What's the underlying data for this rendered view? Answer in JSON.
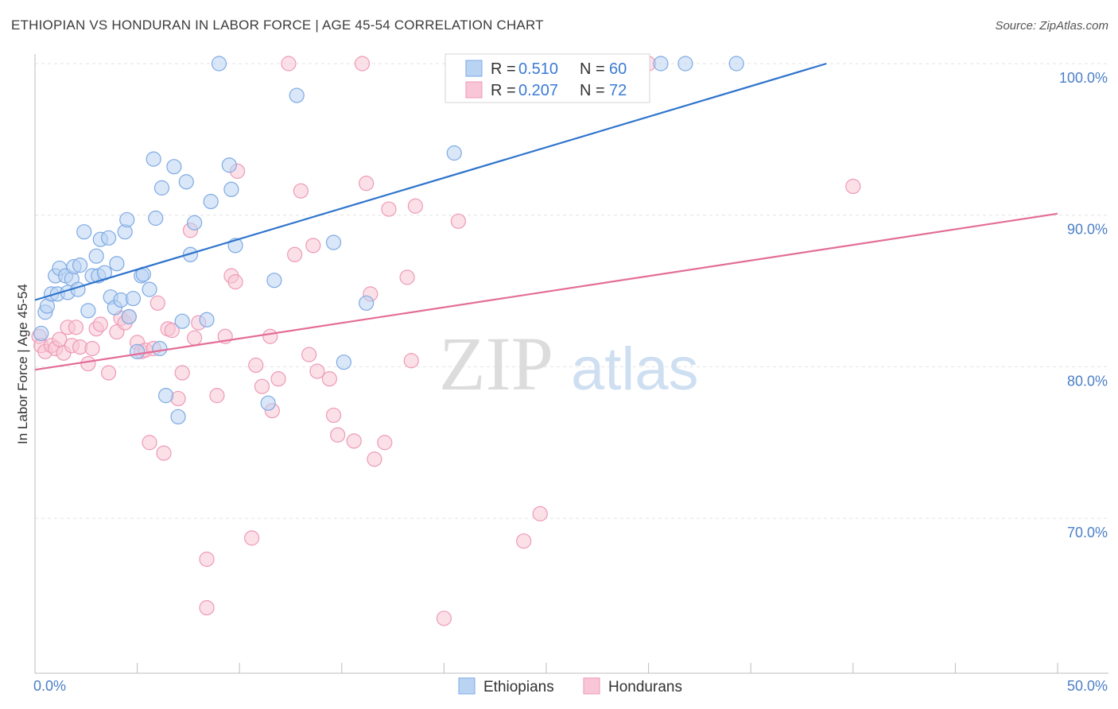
{
  "title": "ETHIOPIAN VS HONDURAN IN LABOR FORCE | AGE 45-54 CORRELATION CHART",
  "source": "Source: ZipAtlas.com",
  "watermark": {
    "zip": "ZIP",
    "atlas": "atlas"
  },
  "colors": {
    "ethiopians_fill": "#b9d3f3",
    "ethiopians_stroke": "#7eaae4",
    "ethiopians_line": "#2f74cc",
    "hondurans_fill": "#f8c6d6",
    "hondurans_stroke": "#ee9ab6",
    "hondurans_line": "#e36d98",
    "tick_label": "#4a7fc8",
    "grid": "#e3e3e3"
  },
  "legend": {
    "items": [
      {
        "r_label": "R =",
        "r_value": "0.510",
        "n_label": "N =",
        "n_value": "60"
      },
      {
        "r_label": "R =",
        "r_value": "0.207",
        "n_label": "N =",
        "n_value": "72"
      }
    ]
  },
  "chart_data": {
    "type": "scatter",
    "title": "ETHIOPIAN VS HONDURAN IN LABOR FORCE | AGE 45-54 CORRELATION CHART",
    "xlabel": "",
    "ylabel": "In Labor Force | Age 45-54",
    "xlim": [
      0,
      50
    ],
    "ylim": [
      60.5,
      101
    ],
    "x_tick_labels": [
      "0.0%",
      "50.0%"
    ],
    "y_ticks": [
      70,
      80,
      90,
      100
    ],
    "y_tick_labels": [
      "70.0%",
      "80.0%",
      "90.0%",
      "100.0%"
    ],
    "series": [
      {
        "name": "Ethiopians",
        "r": 0.51,
        "n": 60,
        "trend": {
          "x": [
            0,
            38.7
          ],
          "y": [
            84.4,
            100.0
          ]
        },
        "points": [
          [
            0.3,
            82.2
          ],
          [
            0.5,
            83.6
          ],
          [
            0.6,
            84.0
          ],
          [
            0.8,
            84.8
          ],
          [
            1.0,
            86.0
          ],
          [
            1.1,
            84.8
          ],
          [
            1.2,
            86.5
          ],
          [
            1.5,
            86.0
          ],
          [
            1.6,
            84.9
          ],
          [
            1.8,
            85.8
          ],
          [
            1.9,
            86.6
          ],
          [
            2.1,
            85.1
          ],
          [
            2.2,
            86.7
          ],
          [
            2.4,
            88.9
          ],
          [
            2.6,
            83.7
          ],
          [
            2.8,
            86.0
          ],
          [
            3.0,
            87.3
          ],
          [
            3.1,
            86.0
          ],
          [
            3.2,
            88.4
          ],
          [
            3.4,
            86.2
          ],
          [
            3.6,
            88.5
          ],
          [
            3.7,
            84.6
          ],
          [
            3.9,
            83.9
          ],
          [
            4.0,
            86.8
          ],
          [
            4.2,
            84.4
          ],
          [
            4.4,
            88.9
          ],
          [
            4.5,
            89.7
          ],
          [
            4.6,
            83.3
          ],
          [
            4.8,
            84.5
          ],
          [
            5.0,
            81.0
          ],
          [
            5.2,
            86.0
          ],
          [
            5.3,
            86.1
          ],
          [
            5.6,
            85.1
          ],
          [
            5.8,
            93.7
          ],
          [
            5.9,
            89.8
          ],
          [
            6.1,
            81.2
          ],
          [
            6.2,
            91.8
          ],
          [
            6.4,
            78.1
          ],
          [
            6.8,
            93.2
          ],
          [
            7.0,
            76.7
          ],
          [
            7.2,
            83.0
          ],
          [
            7.4,
            92.2
          ],
          [
            7.6,
            87.4
          ],
          [
            7.8,
            89.5
          ],
          [
            8.4,
            83.1
          ],
          [
            8.6,
            90.9
          ],
          [
            9.0,
            100.0
          ],
          [
            9.5,
            93.3
          ],
          [
            9.6,
            91.7
          ],
          [
            9.8,
            88.0
          ],
          [
            11.4,
            77.6
          ],
          [
            11.7,
            85.7
          ],
          [
            12.8,
            97.9
          ],
          [
            14.6,
            88.2
          ],
          [
            15.1,
            80.3
          ],
          [
            16.2,
            84.2
          ],
          [
            20.5,
            94.1
          ],
          [
            30.6,
            100.0
          ],
          [
            31.8,
            100.0
          ],
          [
            34.3,
            100.0
          ]
        ]
      },
      {
        "name": "Hondurans",
        "r": 0.207,
        "n": 72,
        "trend": {
          "x": [
            0,
            50
          ],
          "y": [
            79.8,
            90.1
          ]
        },
        "points": [
          [
            0.2,
            82.0
          ],
          [
            0.3,
            81.4
          ],
          [
            0.5,
            81.0
          ],
          [
            0.8,
            81.4
          ],
          [
            1.0,
            81.2
          ],
          [
            1.2,
            81.8
          ],
          [
            1.4,
            80.9
          ],
          [
            1.6,
            82.6
          ],
          [
            1.8,
            81.4
          ],
          [
            2.0,
            82.6
          ],
          [
            2.2,
            81.3
          ],
          [
            2.6,
            80.2
          ],
          [
            2.8,
            81.2
          ],
          [
            3.0,
            82.5
          ],
          [
            3.2,
            82.8
          ],
          [
            3.6,
            79.6
          ],
          [
            4.0,
            82.3
          ],
          [
            4.2,
            83.2
          ],
          [
            4.4,
            82.9
          ],
          [
            4.6,
            83.3
          ],
          [
            5.0,
            81.6
          ],
          [
            5.2,
            81.0
          ],
          [
            5.4,
            81.1
          ],
          [
            5.6,
            75.0
          ],
          [
            5.8,
            81.2
          ],
          [
            6.0,
            84.2
          ],
          [
            6.3,
            74.3
          ],
          [
            6.5,
            82.5
          ],
          [
            6.7,
            82.4
          ],
          [
            7.0,
            77.9
          ],
          [
            7.2,
            79.6
          ],
          [
            7.6,
            89.0
          ],
          [
            7.8,
            81.9
          ],
          [
            8.0,
            82.9
          ],
          [
            8.4,
            67.3
          ],
          [
            8.4,
            64.1
          ],
          [
            8.9,
            78.1
          ],
          [
            9.3,
            82.0
          ],
          [
            9.6,
            86.0
          ],
          [
            9.8,
            85.6
          ],
          [
            9.9,
            92.9
          ],
          [
            10.6,
            68.7
          ],
          [
            10.8,
            80.1
          ],
          [
            11.1,
            78.7
          ],
          [
            11.5,
            82.0
          ],
          [
            11.6,
            77.1
          ],
          [
            11.9,
            79.2
          ],
          [
            12.4,
            100.0
          ],
          [
            12.7,
            87.4
          ],
          [
            13.0,
            91.6
          ],
          [
            13.4,
            80.8
          ],
          [
            13.6,
            88.0
          ],
          [
            13.8,
            79.7
          ],
          [
            14.4,
            79.2
          ],
          [
            14.6,
            76.8
          ],
          [
            14.8,
            75.5
          ],
          [
            15.6,
            75.1
          ],
          [
            16.0,
            100.0
          ],
          [
            16.2,
            92.1
          ],
          [
            16.4,
            84.8
          ],
          [
            16.6,
            73.9
          ],
          [
            17.1,
            75.0
          ],
          [
            17.3,
            90.4
          ],
          [
            18.2,
            85.9
          ],
          [
            18.4,
            80.4
          ],
          [
            18.6,
            90.6
          ],
          [
            20.0,
            63.4
          ],
          [
            20.7,
            89.6
          ],
          [
            23.9,
            68.5
          ],
          [
            24.7,
            70.3
          ],
          [
            30.0,
            100.0
          ],
          [
            40.0,
            91.9
          ]
        ]
      }
    ]
  },
  "bottom_legend": [
    "Ethiopians",
    "Hondurans"
  ]
}
